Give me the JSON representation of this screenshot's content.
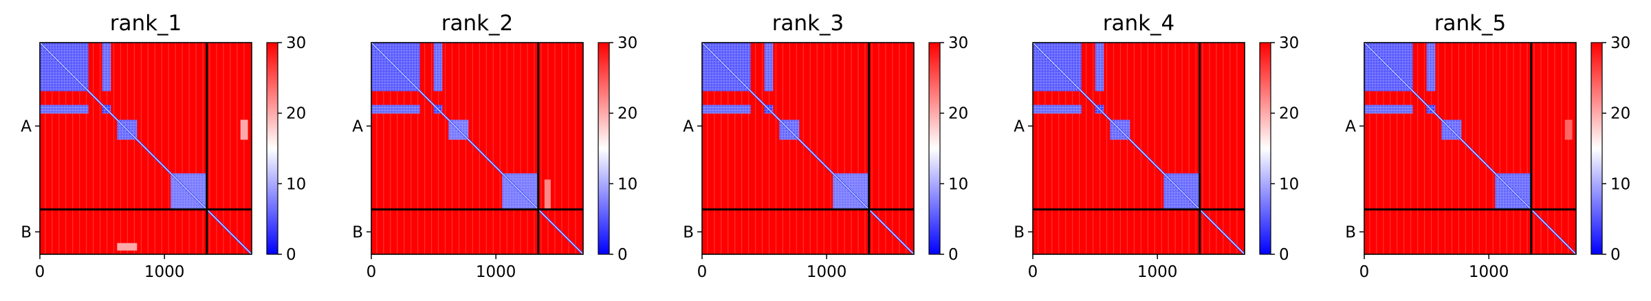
{
  "chart_data": [
    {
      "type": "heatmap",
      "title": "rank_1",
      "x_ticks": [
        "0",
        "1000"
      ],
      "x_tick_values": [
        0,
        1000
      ],
      "y_tick_labels": [
        "A",
        "B"
      ],
      "xlim": [
        0,
        1700
      ],
      "ylim": [
        1700,
        0
      ],
      "chain_boundary": 1340,
      "colorbar": {
        "ticks": [
          "0",
          "10",
          "20",
          "30"
        ],
        "range": [
          0,
          30
        ],
        "colormap": [
          "#0000ff",
          "#ffffff",
          "#ff0000"
        ]
      },
      "blue_blocks": [
        {
          "region": [
            0,
            0,
            390,
            390
          ],
          "value": 5
        },
        {
          "region": [
            0,
            500,
            390,
            570
          ],
          "value": 6
        },
        {
          "region": [
            500,
            0,
            570,
            390
          ],
          "value": 6
        },
        {
          "region": [
            500,
            500,
            570,
            570
          ],
          "value": 4
        },
        {
          "region": [
            620,
            620,
            780,
            780
          ],
          "value": 6
        },
        {
          "region": [
            1050,
            1050,
            1340,
            1340
          ],
          "value": 7
        }
      ],
      "light_spots": [
        {
          "region": [
            1610,
            620,
            1670,
            780
          ],
          "value": 20
        },
        {
          "region": [
            620,
            1610,
            780,
            1670
          ],
          "value": 20
        }
      ]
    },
    {
      "type": "heatmap",
      "title": "rank_2",
      "x_ticks": [
        "0",
        "1000"
      ],
      "x_tick_values": [
        0,
        1000
      ],
      "y_tick_labels": [
        "A",
        "B"
      ],
      "xlim": [
        0,
        1700
      ],
      "ylim": [
        1700,
        0
      ],
      "chain_boundary": 1340,
      "colorbar": {
        "ticks": [
          "0",
          "10",
          "20",
          "30"
        ],
        "range": [
          0,
          30
        ],
        "colormap": [
          "#0000ff",
          "#ffffff",
          "#ff0000"
        ]
      },
      "blue_blocks": [
        {
          "region": [
            0,
            0,
            390,
            390
          ],
          "value": 5
        },
        {
          "region": [
            0,
            500,
            390,
            570
          ],
          "value": 6
        },
        {
          "region": [
            500,
            0,
            570,
            390
          ],
          "value": 6
        },
        {
          "region": [
            500,
            500,
            570,
            570
          ],
          "value": 4
        },
        {
          "region": [
            620,
            620,
            780,
            780
          ],
          "value": 7
        },
        {
          "region": [
            1050,
            1050,
            1340,
            1340
          ],
          "value": 7
        }
      ],
      "light_spots": [
        {
          "region": [
            1390,
            1100,
            1440,
            1340
          ],
          "value": 22
        }
      ]
    },
    {
      "type": "heatmap",
      "title": "rank_3",
      "x_ticks": [
        "0",
        "1000"
      ],
      "x_tick_values": [
        0,
        1000
      ],
      "y_tick_labels": [
        "A",
        "B"
      ],
      "xlim": [
        0,
        1700
      ],
      "ylim": [
        1700,
        0
      ],
      "chain_boundary": 1340,
      "colorbar": {
        "ticks": [
          "0",
          "10",
          "20",
          "30"
        ],
        "range": [
          0,
          30
        ],
        "colormap": [
          "#0000ff",
          "#ffffff",
          "#ff0000"
        ]
      },
      "blue_blocks": [
        {
          "region": [
            0,
            0,
            390,
            390
          ],
          "value": 5
        },
        {
          "region": [
            0,
            500,
            390,
            570
          ],
          "value": 6
        },
        {
          "region": [
            500,
            0,
            570,
            390
          ],
          "value": 6
        },
        {
          "region": [
            500,
            500,
            570,
            570
          ],
          "value": 4
        },
        {
          "region": [
            620,
            620,
            780,
            780
          ],
          "value": 6
        },
        {
          "region": [
            1050,
            1050,
            1340,
            1340
          ],
          "value": 7
        }
      ],
      "light_spots": []
    },
    {
      "type": "heatmap",
      "title": "rank_4",
      "x_ticks": [
        "0",
        "1000"
      ],
      "x_tick_values": [
        0,
        1000
      ],
      "y_tick_labels": [
        "A",
        "B"
      ],
      "xlim": [
        0,
        1700
      ],
      "ylim": [
        1700,
        0
      ],
      "chain_boundary": 1340,
      "colorbar": {
        "ticks": [
          "0",
          "10",
          "20",
          "30"
        ],
        "range": [
          0,
          30
        ],
        "colormap": [
          "#0000ff",
          "#ffffff",
          "#ff0000"
        ]
      },
      "blue_blocks": [
        {
          "region": [
            0,
            0,
            390,
            390
          ],
          "value": 5
        },
        {
          "region": [
            0,
            500,
            390,
            570
          ],
          "value": 6
        },
        {
          "region": [
            500,
            0,
            570,
            390
          ],
          "value": 6
        },
        {
          "region": [
            500,
            500,
            570,
            570
          ],
          "value": 4
        },
        {
          "region": [
            620,
            620,
            780,
            780
          ],
          "value": 6
        },
        {
          "region": [
            1050,
            1050,
            1340,
            1340
          ],
          "value": 6
        }
      ],
      "light_spots": []
    },
    {
      "type": "heatmap",
      "title": "rank_5",
      "x_ticks": [
        "0",
        "1000"
      ],
      "x_tick_values": [
        0,
        1000
      ],
      "y_tick_labels": [
        "A",
        "B"
      ],
      "xlim": [
        0,
        1700
      ],
      "ylim": [
        1700,
        0
      ],
      "chain_boundary": 1340,
      "colorbar": {
        "ticks": [
          "0",
          "10",
          "20",
          "30"
        ],
        "range": [
          0,
          30
        ],
        "colormap": [
          "#0000ff",
          "#ffffff",
          "#ff0000"
        ]
      },
      "blue_blocks": [
        {
          "region": [
            0,
            0,
            390,
            390
          ],
          "value": 5
        },
        {
          "region": [
            0,
            500,
            390,
            570
          ],
          "value": 6
        },
        {
          "region": [
            500,
            0,
            570,
            390
          ],
          "value": 6
        },
        {
          "region": [
            500,
            500,
            570,
            570
          ],
          "value": 4
        },
        {
          "region": [
            620,
            620,
            780,
            780
          ],
          "value": 6
        },
        {
          "region": [
            1050,
            1050,
            1340,
            1340
          ],
          "value": 6
        }
      ],
      "light_spots": [
        {
          "region": [
            1610,
            620,
            1670,
            780
          ],
          "value": 24
        }
      ]
    }
  ]
}
